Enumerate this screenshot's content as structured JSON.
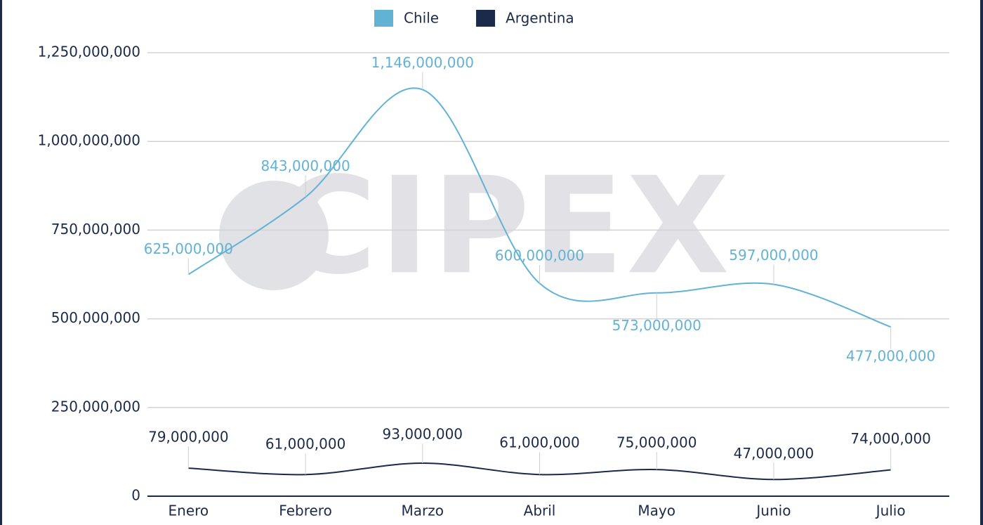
{
  "watermark": "CIPEX",
  "chart_data": {
    "type": "line",
    "categories": [
      "Enero",
      "Febrero",
      "Marzo",
      "Abril",
      "Mayo",
      "Junio",
      "Julio"
    ],
    "series": [
      {
        "name": "Chile",
        "color": "#62b2d6",
        "values": [
          625000000,
          843000000,
          1146000000,
          600000000,
          573000000,
          597000000,
          477000000
        ],
        "value_labels": [
          "625,000,000",
          "843,000,000",
          "1,146,000,000",
          "600,000,000",
          "573,000,000",
          "597,000,000",
          "477,000,000"
        ]
      },
      {
        "name": "Argentina",
        "color": "#1b2a4a",
        "values": [
          79000000,
          61000000,
          93000000,
          61000000,
          75000000,
          47000000,
          74000000
        ],
        "value_labels": [
          "79,000,000",
          "61,000,000",
          "93,000,000",
          "61,000,000",
          "75,000,000",
          "47,000,000",
          "74,000,000"
        ]
      }
    ],
    "ylim": [
      0,
      1250000000
    ],
    "yticks": [
      0,
      {
        "value": 250000000,
        "label": "250,000,000"
      },
      {
        "value": 500000000,
        "label": "500,000,000"
      },
      {
        "value": 750000000,
        "label": "750,000,000"
      },
      {
        "value": 1000000000,
        "label": "1,000,000,000"
      },
      {
        "value": 1250000000,
        "label": "1,250,000,000"
      }
    ],
    "grid": true,
    "legend": "top"
  }
}
